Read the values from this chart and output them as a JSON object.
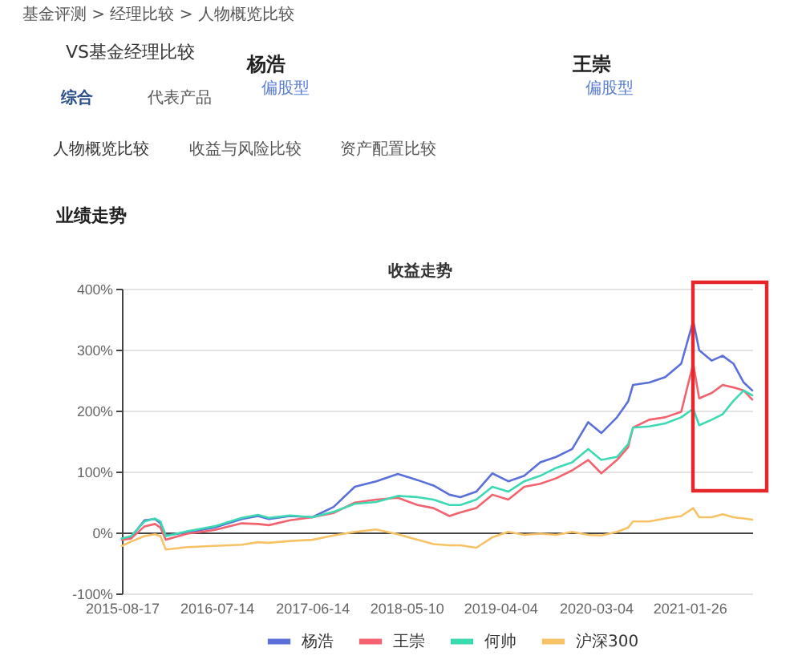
{
  "chart_data": {
    "type": "line",
    "title": "收益走势",
    "annotations": [
      "基金评测 > 经理比较 > 人物概览比较",
      "VS基金经理比较",
      "综合",
      "代表产品",
      "杨浩",
      "偏股型",
      "王崇",
      "偏股型",
      "人物概览比较",
      "收益与风险比较",
      "资产配置比较",
      "业绩走势"
    ],
    "x": [
      "2015-08-17",
      "2015-09-18",
      "2015-11-04",
      "2015-12-11",
      "2015-12-30",
      "2016-01-18",
      "2016-04-02",
      "2016-07-05",
      "2016-10-10",
      "2016-12-06",
      "2017-01-13",
      "2017-03-28",
      "2017-06-14",
      "2017-08-28",
      "2017-11-10",
      "2018-01-24",
      "2018-04-10",
      "2018-06-18",
      "2018-08-13",
      "2018-10-08",
      "2018-11-15",
      "2019-01-10",
      "2019-03-07",
      "2019-05-02",
      "2019-06-27",
      "2019-08-22",
      "2019-10-17",
      "2019-12-12",
      "2020-02-06",
      "2020-03-23",
      "2020-05-17",
      "2020-06-25",
      "2020-07-12",
      "2020-09-07",
      "2020-11-02",
      "2020-12-28",
      "2021-02-08",
      "2021-03-01",
      "2021-04-14",
      "2021-05-22",
      "2021-06-29",
      "2021-08-04",
      "2021-09-03"
    ],
    "series": [
      {
        "name": "杨浩",
        "color": "#5b6fd8",
        "values": [
          -10,
          -8,
          20,
          22,
          15,
          -5,
          0,
          8,
          22,
          27,
          22,
          27,
          25,
          42,
          75,
          84,
          96,
          86,
          77,
          62,
          58,
          67,
          97,
          84,
          93,
          115,
          124,
          137,
          181,
          163,
          189,
          215,
          242,
          246,
          255,
          277,
          347,
          299,
          282,
          290,
          277,
          246,
          233
        ]
      },
      {
        "name": "王崇",
        "color": "#f2636f",
        "values": [
          -12,
          -10,
          10,
          14,
          8,
          -12,
          -2,
          4,
          15,
          14,
          12,
          20,
          25,
          32,
          49,
          54,
          57,
          45,
          40,
          27,
          33,
          40,
          62,
          54,
          75,
          80,
          89,
          102,
          119,
          97,
          119,
          140,
          172,
          185,
          189,
          198,
          277,
          220,
          229,
          242,
          238,
          233,
          218
        ]
      },
      {
        "name": "何帅",
        "color": "#3dd9b3",
        "values": [
          -10,
          -6,
          18,
          23,
          18,
          -6,
          2,
          10,
          24,
          29,
          24,
          28,
          25,
          34,
          47,
          50,
          60,
          58,
          54,
          45,
          45,
          54,
          75,
          67,
          84,
          93,
          106,
          115,
          137,
          119,
          124,
          145,
          172,
          174,
          179,
          189,
          203,
          176,
          185,
          194,
          216,
          233,
          225
        ]
      },
      {
        "name": "沪深300",
        "color": "#f7c266",
        "values": [
          -22,
          -15,
          -6,
          -3,
          -6,
          -28,
          -24,
          -22,
          -20,
          -16,
          -17,
          -14,
          -12,
          -5,
          1,
          5,
          -3,
          -12,
          -19,
          -21,
          -21,
          -25,
          -8,
          1,
          -4,
          -2,
          -4,
          1,
          -4,
          -5,
          1,
          8,
          18,
          18,
          23,
          27,
          40,
          25,
          25,
          30,
          25,
          23,
          21
        ]
      }
    ],
    "xlim": [
      "2015-08-17",
      "2021-09-03"
    ],
    "xticks": [
      "2015-08-17",
      "2016-07-14",
      "2017-06-14",
      "2018-05-10",
      "2019-04-04",
      "2020-03-04",
      "2021-01-26"
    ],
    "ylim": [
      -100,
      400
    ],
    "yticks": [
      {
        "value": -100,
        "label": "-100%"
      },
      {
        "value": 0,
        "label": "0%"
      },
      {
        "value": 100,
        "label": "100%"
      },
      {
        "value": 200,
        "label": "200%"
      },
      {
        "value": 300,
        "label": "300%"
      },
      {
        "value": 400,
        "label": "400%"
      }
    ],
    "grid": "y",
    "legend": "bottom"
  }
}
